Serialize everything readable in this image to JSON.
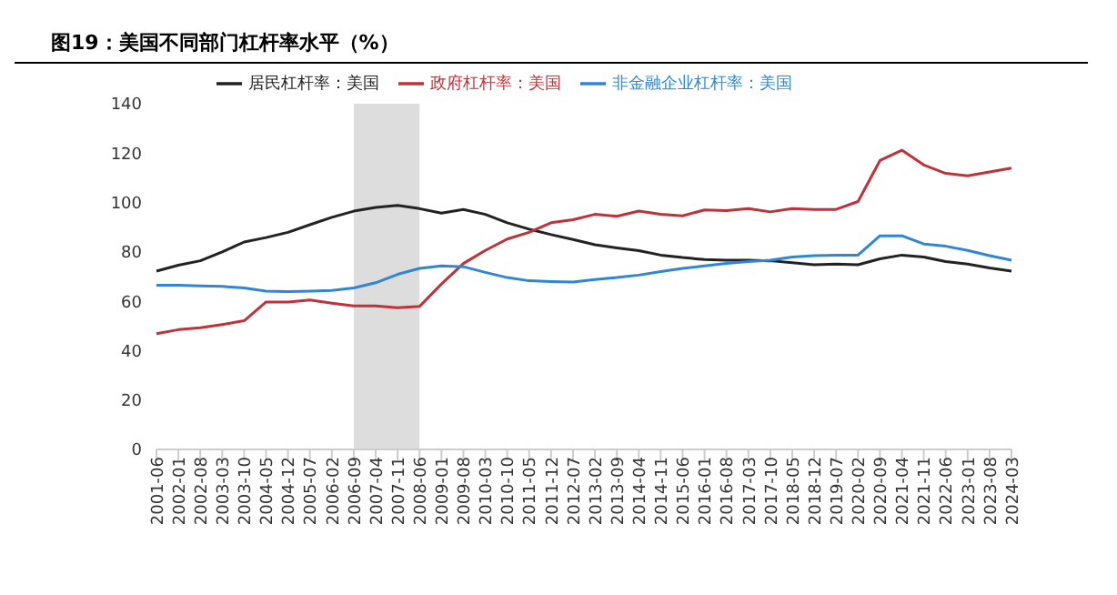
{
  "chart_data": {
    "type": "line",
    "title": "图19：美国不同部门杠杆率水平（%）",
    "categories": [
      "2001-06",
      "2002-01",
      "2002-08",
      "2003-03",
      "2003-10",
      "2004-05",
      "2004-12",
      "2005-07",
      "2006-02",
      "2006-09",
      "2007-04",
      "2007-11",
      "2008-06",
      "2009-01",
      "2009-08",
      "2010-03",
      "2010-10",
      "2011-05",
      "2011-12",
      "2012-07",
      "2013-02",
      "2013-09",
      "2014-04",
      "2014-11",
      "2015-06",
      "2016-01",
      "2016-08",
      "2017-03",
      "2017-10",
      "2018-05",
      "2018-12",
      "2019-07",
      "2020-02",
      "2020-09",
      "2021-04",
      "2021-11",
      "2022-06",
      "2023-01",
      "2023-08",
      "2024-03"
    ],
    "series": [
      {
        "name": "居民杠杆率：美国",
        "color": "#222222",
        "values": [
          72.2,
          74.6,
          76.4,
          80,
          84,
          85.8,
          87.9,
          91,
          94,
          96.5,
          98,
          98.8,
          97.5,
          95.7,
          97.2,
          95.2,
          91.8,
          89.2,
          87,
          85,
          82.9,
          81.6,
          80.5,
          78.7,
          77.7,
          76.9,
          76.6,
          76.6,
          76.4,
          75.6,
          74.8,
          75.1,
          74.8,
          77.2,
          78.7,
          77.9,
          76.1,
          75.1,
          73.5,
          72.2
        ]
      },
      {
        "name": "政府杠杆率：美国",
        "color": "#c0313a",
        "values": [
          46.9,
          48.5,
          49.3,
          50.6,
          52.1,
          59.7,
          59.7,
          60.5,
          59.2,
          58.1,
          58.1,
          57.4,
          57.9,
          67,
          75.3,
          80.6,
          85.2,
          87.9,
          91.8,
          93,
          95.2,
          94.4,
          96.5,
          95.2,
          94.6,
          97,
          96.7,
          97.5,
          96.2,
          97.5,
          97.2,
          97.2,
          100.4,
          117,
          121.2,
          115.2,
          111.8,
          110.8,
          112.4,
          113.9
        ]
      },
      {
        "name": "非金融企业杠杆率：美国",
        "color": "#2f86d6",
        "values": [
          66.5,
          66.5,
          66.2,
          66,
          65.4,
          64.1,
          63.9,
          64.1,
          64.4,
          65.4,
          67.5,
          70.9,
          73.3,
          74.3,
          74,
          71.7,
          69.6,
          68.3,
          68,
          67.8,
          68.8,
          69.6,
          70.6,
          72,
          73.3,
          74.3,
          75.3,
          76.1,
          76.6,
          77.9,
          78.5,
          78.7,
          78.7,
          86.5,
          86.5,
          83.2,
          82.3,
          80.6,
          78.5,
          76.6
        ]
      }
    ],
    "ylim": [
      0,
      140
    ],
    "yticks": [
      0,
      20,
      40,
      60,
      80,
      100,
      120,
      140
    ],
    "bands": [
      {
        "axis": "x",
        "from": "2006-09",
        "to": "2008-06",
        "color": "#dddddd"
      }
    ],
    "legend": "top",
    "grid": false,
    "marker": "none",
    "line_style": "solid"
  }
}
